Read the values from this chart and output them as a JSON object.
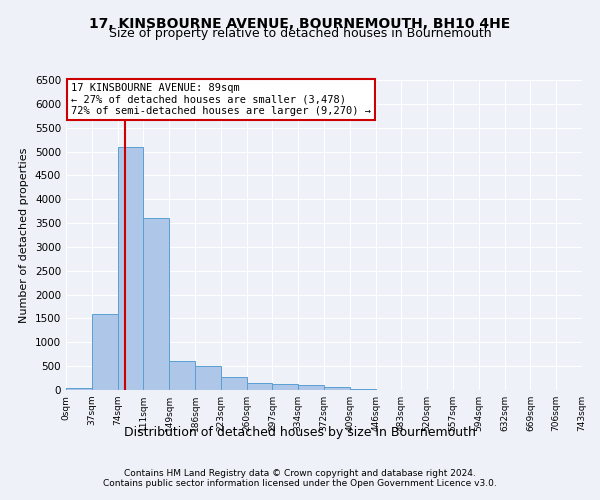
{
  "title": "17, KINSBOURNE AVENUE, BOURNEMOUTH, BH10 4HE",
  "subtitle": "Size of property relative to detached houses in Bournemouth",
  "xlabel": "Distribution of detached houses by size in Bournemouth",
  "ylabel": "Number of detached properties",
  "footnote1": "Contains HM Land Registry data © Crown copyright and database right 2024.",
  "footnote2": "Contains public sector information licensed under the Open Government Licence v3.0.",
  "bin_labels": [
    "0sqm",
    "37sqm",
    "74sqm",
    "111sqm",
    "149sqm",
    "186sqm",
    "223sqm",
    "260sqm",
    "297sqm",
    "334sqm",
    "372sqm",
    "409sqm",
    "446sqm",
    "483sqm",
    "520sqm",
    "557sqm",
    "594sqm",
    "632sqm",
    "669sqm",
    "706sqm",
    "743sqm"
  ],
  "bar_values": [
    50,
    1600,
    5100,
    3600,
    600,
    500,
    280,
    150,
    130,
    100,
    60,
    30,
    10,
    5,
    2,
    1,
    0,
    0,
    0,
    0
  ],
  "ylim": [
    0,
    6500
  ],
  "yticks": [
    0,
    500,
    1000,
    1500,
    2000,
    2500,
    3000,
    3500,
    4000,
    4500,
    5000,
    5500,
    6000,
    6500
  ],
  "bar_color": "#aec6e8",
  "bar_edge_color": "#5a9fd4",
  "vline_x": 2.27,
  "vline_color": "#cc0000",
  "annotation_text": "17 KINSBOURNE AVENUE: 89sqm\n← 27% of detached houses are smaller (3,478)\n72% of semi-detached houses are larger (9,270) →",
  "annotation_box_color": "#cc0000",
  "bg_color": "#eef2f8",
  "grid_color": "#ffffff",
  "title_fontsize": 10,
  "subtitle_fontsize": 9,
  "footnote_fontsize": 6.5,
  "ylabel_fontsize": 8,
  "xlabel_fontsize": 9,
  "ytick_fontsize": 7.5,
  "xtick_fontsize": 6.5,
  "annot_fontsize": 7.5
}
